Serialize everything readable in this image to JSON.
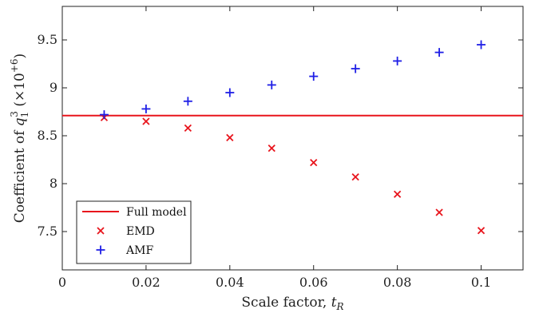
{
  "chart_data": {
    "type": "scatter",
    "xlabel_text": "Scale factor, ",
    "xlabel_var": "t",
    "xlabel_sub": "R",
    "ylabel_text": "Coefficient of ",
    "ylabel_var": "q",
    "ylabel_sub": "1",
    "ylabel_sup": "3",
    "ylabel_scale": " (×10",
    "ylabel_scale_sup": "+6",
    "ylabel_close": ")",
    "xlim": [
      0,
      0.11
    ],
    "ylim": [
      7.1,
      9.85
    ],
    "xticks": [
      0,
      0.02,
      0.04,
      0.06,
      0.08,
      0.1
    ],
    "xtick_labels": [
      "0",
      "0.02",
      "0.04",
      "0.06",
      "0.08",
      "0.1"
    ],
    "yticks": [
      7.5,
      8,
      8.5,
      9,
      9.5
    ],
    "ytick_labels": [
      "7.5",
      "8",
      "8.5",
      "9",
      "9.5"
    ],
    "grid": false,
    "legend_position": "bottom-left",
    "reference_line": {
      "name": "Full model",
      "y": 8.71,
      "color": "#e8141c"
    },
    "series": [
      {
        "name": "EMD",
        "marker": "x",
        "color": "#e8141c",
        "x": [
          0.01,
          0.02,
          0.03,
          0.04,
          0.05,
          0.06,
          0.07,
          0.08,
          0.09,
          0.1
        ],
        "y": [
          8.69,
          8.65,
          8.58,
          8.48,
          8.37,
          8.22,
          8.07,
          7.89,
          7.7,
          7.51
        ]
      },
      {
        "name": "AMF",
        "marker": "+",
        "color": "#1f1fe6",
        "x": [
          0.01,
          0.02,
          0.03,
          0.04,
          0.05,
          0.06,
          0.07,
          0.08,
          0.09,
          0.1
        ],
        "y": [
          8.72,
          8.78,
          8.86,
          8.95,
          9.03,
          9.12,
          9.2,
          9.28,
          9.37,
          9.45
        ]
      }
    ]
  }
}
